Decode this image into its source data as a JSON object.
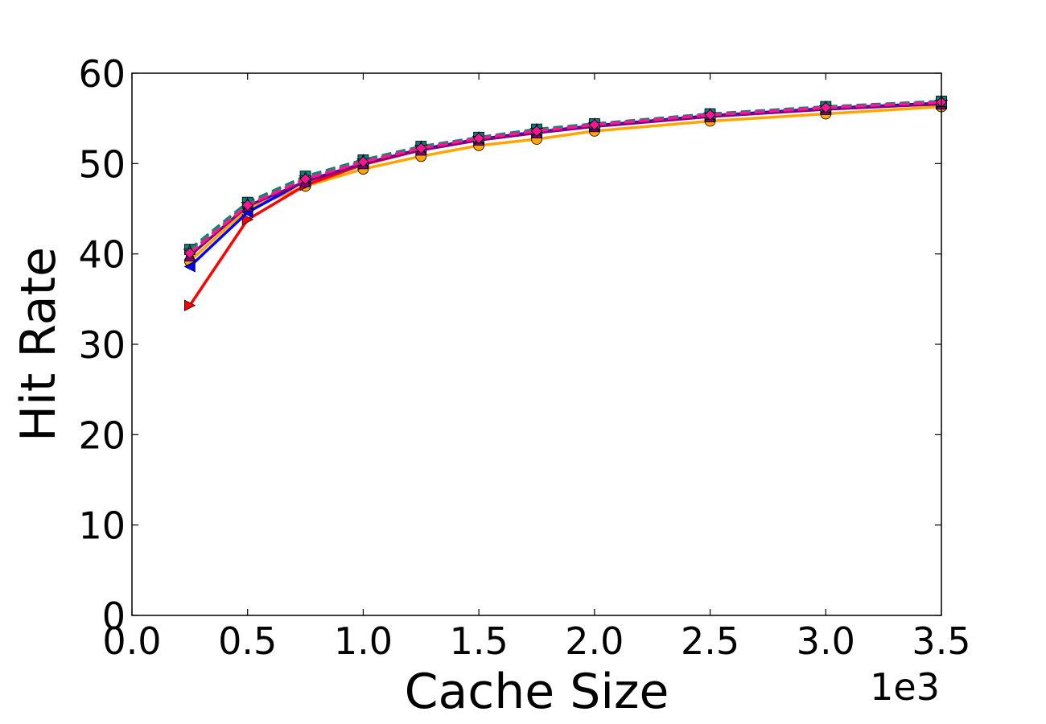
{
  "chart_data": {
    "type": "line",
    "xlabel": "Cache Size",
    "ylabel": "Hit Rate",
    "x_offset_label": "1e3",
    "xlim": [
      0.0,
      3.5
    ],
    "ylim": [
      0,
      60
    ],
    "xticks": [
      "0.0",
      "0.5",
      "1.0",
      "1.5",
      "2.0",
      "2.5",
      "3.0",
      "3.5"
    ],
    "yticks": [
      "0",
      "10",
      "20",
      "30",
      "40",
      "50",
      "60"
    ],
    "grid": false,
    "x": [
      0.25,
      0.5,
      0.75,
      1.0,
      1.25,
      1.5,
      1.75,
      2.0,
      2.5,
      3.0,
      3.5
    ],
    "series": [
      {
        "color": "#ffa500",
        "marker": "circle",
        "dash": "solid",
        "values": [
          39.2,
          45.0,
          47.5,
          49.4,
          50.8,
          52.0,
          52.7,
          53.6,
          54.7,
          55.5,
          56.3
        ]
      },
      {
        "color": "#ff0000",
        "marker": "triangle-right",
        "dash": "solid",
        "values": [
          34.3,
          43.8,
          47.6,
          49.9,
          51.5,
          52.6,
          53.4,
          54.2,
          55.2,
          56.1,
          56.6
        ]
      },
      {
        "color": "#0000ff",
        "marker": "triangle-left",
        "dash": "solid",
        "values": [
          38.6,
          44.6,
          48.1,
          50.0,
          51.6,
          52.7,
          53.5,
          54.2,
          55.3,
          56.1,
          56.7
        ]
      },
      {
        "color": "#800080",
        "marker": "triangle-up",
        "dash": "solid",
        "values": [
          39.8,
          45.3,
          48.0,
          50.0,
          51.5,
          52.6,
          53.4,
          54.1,
          55.2,
          56.0,
          56.6
        ]
      },
      {
        "color": "#008080",
        "marker": "square",
        "dash": "dashed",
        "values": [
          40.5,
          45.7,
          48.6,
          50.4,
          51.9,
          52.9,
          53.8,
          54.4,
          55.5,
          56.3,
          56.9
        ]
      },
      {
        "color": "#2e8b57",
        "marker": "star",
        "dash": "dashed",
        "values": [
          40.3,
          45.5,
          48.4,
          50.3,
          51.8,
          52.8,
          53.7,
          54.3,
          55.4,
          56.2,
          56.8
        ]
      },
      {
        "color": "#ff1493",
        "marker": "diamond",
        "dash": "dashed",
        "values": [
          40.1,
          45.4,
          48.3,
          50.2,
          51.7,
          52.8,
          53.6,
          54.3,
          55.4,
          56.2,
          56.8
        ]
      }
    ]
  }
}
